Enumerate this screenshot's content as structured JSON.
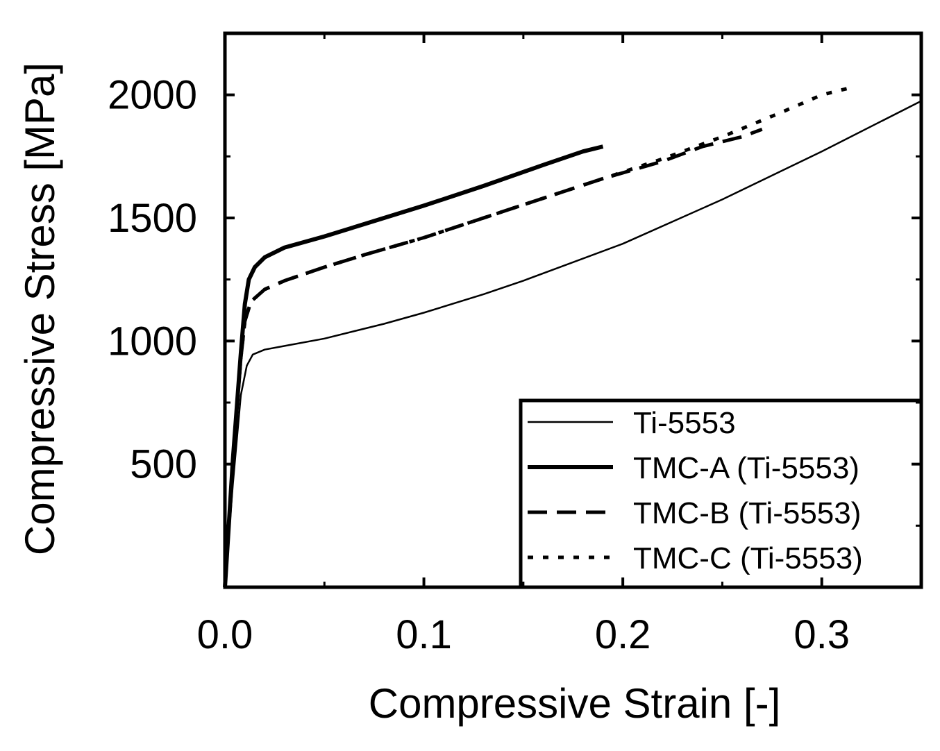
{
  "chart_data": {
    "type": "line",
    "title": "",
    "xlabel": "Compressive Strain [-]",
    "ylabel": "Compressive Stress [MPa]",
    "xlim": [
      0.0,
      0.35
    ],
    "ylim": [
      0,
      2250
    ],
    "xticks": [
      0.0,
      0.1,
      0.2,
      0.3
    ],
    "xtick_labels": [
      "0.0",
      "0.1",
      "0.2",
      "0.3"
    ],
    "yticks": [
      500,
      1000,
      1500,
      2000
    ],
    "ytick_labels": [
      "500",
      "1000",
      "1500",
      "2000"
    ],
    "legend_position": "bottom-right",
    "series": [
      {
        "name": "Ti-5553",
        "style": "thin-solid",
        "points": [
          [
            0,
            0
          ],
          [
            0.004,
            420
          ],
          [
            0.008,
            780
          ],
          [
            0.011,
            900
          ],
          [
            0.014,
            945
          ],
          [
            0.02,
            965
          ],
          [
            0.03,
            980
          ],
          [
            0.05,
            1010
          ],
          [
            0.08,
            1070
          ],
          [
            0.1,
            1115
          ],
          [
            0.13,
            1190
          ],
          [
            0.15,
            1245
          ],
          [
            0.2,
            1395
          ],
          [
            0.25,
            1575
          ],
          [
            0.3,
            1770
          ],
          [
            0.35,
            1975
          ]
        ]
      },
      {
        "name": "TMC-A (Ti-5553)",
        "style": "thick-solid",
        "points": [
          [
            0,
            0
          ],
          [
            0.004,
            520
          ],
          [
            0.008,
            950
          ],
          [
            0.01,
            1150
          ],
          [
            0.012,
            1250
          ],
          [
            0.015,
            1300
          ],
          [
            0.02,
            1340
          ],
          [
            0.03,
            1380
          ],
          [
            0.05,
            1425
          ],
          [
            0.07,
            1475
          ],
          [
            0.1,
            1550
          ],
          [
            0.13,
            1630
          ],
          [
            0.16,
            1715
          ],
          [
            0.18,
            1770
          ],
          [
            0.19,
            1790
          ]
        ]
      },
      {
        "name": "TMC-B (Ti-5553)",
        "style": "dashed",
        "points": [
          [
            0,
            0
          ],
          [
            0.004,
            520
          ],
          [
            0.008,
            930
          ],
          [
            0.01,
            1080
          ],
          [
            0.013,
            1160
          ],
          [
            0.02,
            1210
          ],
          [
            0.03,
            1245
          ],
          [
            0.05,
            1300
          ],
          [
            0.07,
            1350
          ],
          [
            0.1,
            1420
          ],
          [
            0.13,
            1500
          ],
          [
            0.16,
            1580
          ],
          [
            0.19,
            1660
          ],
          [
            0.22,
            1730
          ],
          [
            0.24,
            1790
          ],
          [
            0.26,
            1830
          ],
          [
            0.27,
            1860
          ]
        ]
      },
      {
        "name": "TMC-C (Ti-5553)",
        "style": "dotted",
        "points": [
          [
            0,
            0
          ],
          [
            0.004,
            520
          ],
          [
            0.008,
            930
          ],
          [
            0.01,
            1080
          ],
          [
            0.013,
            1160
          ],
          [
            0.02,
            1210
          ],
          [
            0.03,
            1245
          ],
          [
            0.05,
            1300
          ],
          [
            0.07,
            1350
          ],
          [
            0.1,
            1420
          ],
          [
            0.13,
            1500
          ],
          [
            0.16,
            1580
          ],
          [
            0.19,
            1660
          ],
          [
            0.22,
            1740
          ],
          [
            0.25,
            1830
          ],
          [
            0.28,
            1930
          ],
          [
            0.3,
            2000
          ],
          [
            0.315,
            2030
          ]
        ]
      }
    ]
  }
}
